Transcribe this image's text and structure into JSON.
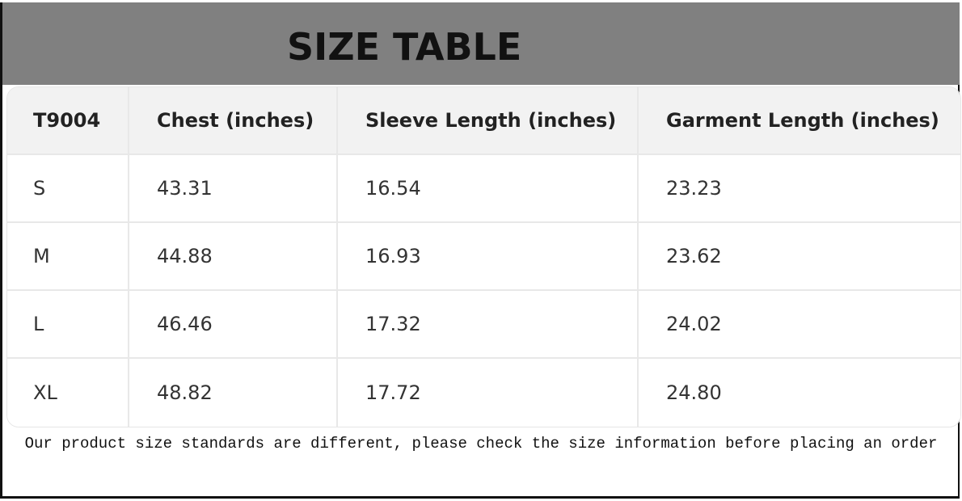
{
  "title": "SIZE TABLE",
  "table": {
    "headers": [
      "T9004",
      "Chest (inches)",
      "Sleeve Length (inches)",
      "Garment Length (inches)"
    ],
    "rows": [
      [
        "S",
        "43.31",
        "16.54",
        "23.23"
      ],
      [
        "M",
        "44.88",
        "16.93",
        "23.62"
      ],
      [
        "L",
        "46.46",
        "17.32",
        "24.02"
      ],
      [
        "XL",
        "48.82",
        "17.72",
        "24.80"
      ]
    ]
  },
  "note": "Our product size standards are different, please check the size information before placing an order",
  "colors": {
    "banner": "#808080",
    "header_bg": "#f2f2f2"
  }
}
